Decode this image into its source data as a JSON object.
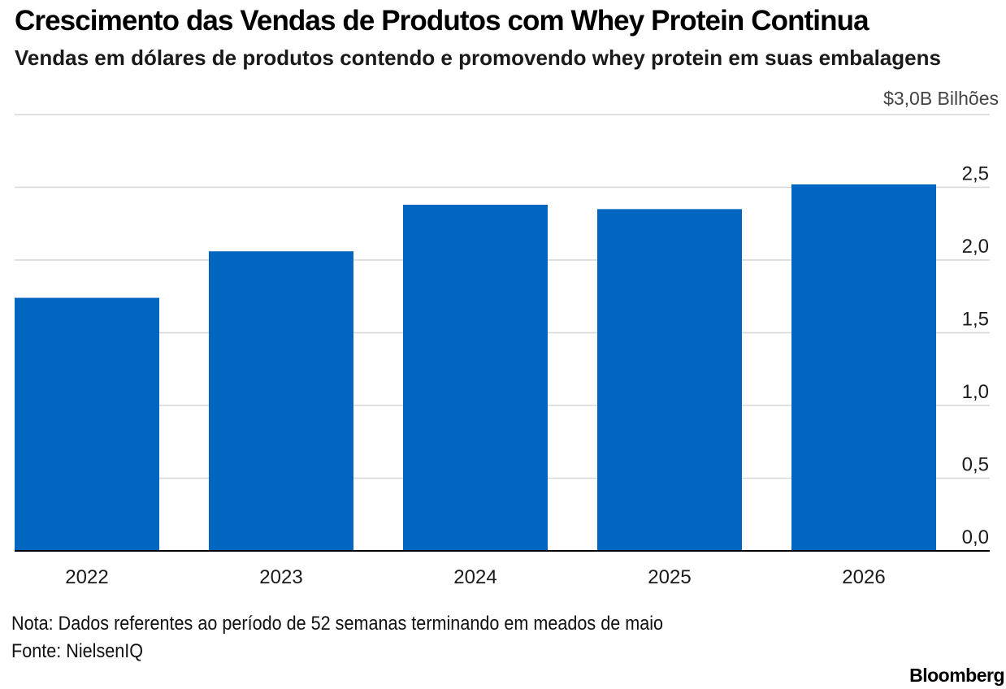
{
  "header": {
    "title": "Crescimento das Vendas de Produtos com Whey Protein Continua",
    "subtitle": "Vendas em dólares de produtos contendo e promovendo whey protein em suas embalagens"
  },
  "footer": {
    "note": "Nota: Dados referentes ao período de 52 semanas terminando em meados de maio",
    "source": "Fonte: NielsenIQ",
    "brand": "Bloomberg"
  },
  "colors": {
    "bar": "#0066c0",
    "grid": "#d6d6d6",
    "axis": "#000000",
    "text": "#1a1a1a",
    "muted": "#444444"
  },
  "chart_data": {
    "type": "bar",
    "title": "Crescimento das Vendas de Produtos com Whey Protein Continua",
    "subtitle": "Vendas em dólares de produtos contendo e promovendo whey protein em suas embalagens",
    "categories": [
      "2022",
      "2023",
      "2024",
      "2025",
      "2026"
    ],
    "values": [
      1.74,
      2.06,
      2.38,
      2.35,
      2.52
    ],
    "ylim": [
      0,
      3.0
    ],
    "y_ticks": [
      0,
      0.5,
      1.0,
      1.5,
      2.0,
      2.5,
      3.0
    ],
    "y_tick_labels": [
      "0,0",
      "0,5",
      "1,0",
      "1,5",
      "2,0",
      "2,5",
      "$3,0B Bilhões"
    ],
    "y_axis_position": "right",
    "grid": true,
    "legend": "none"
  }
}
